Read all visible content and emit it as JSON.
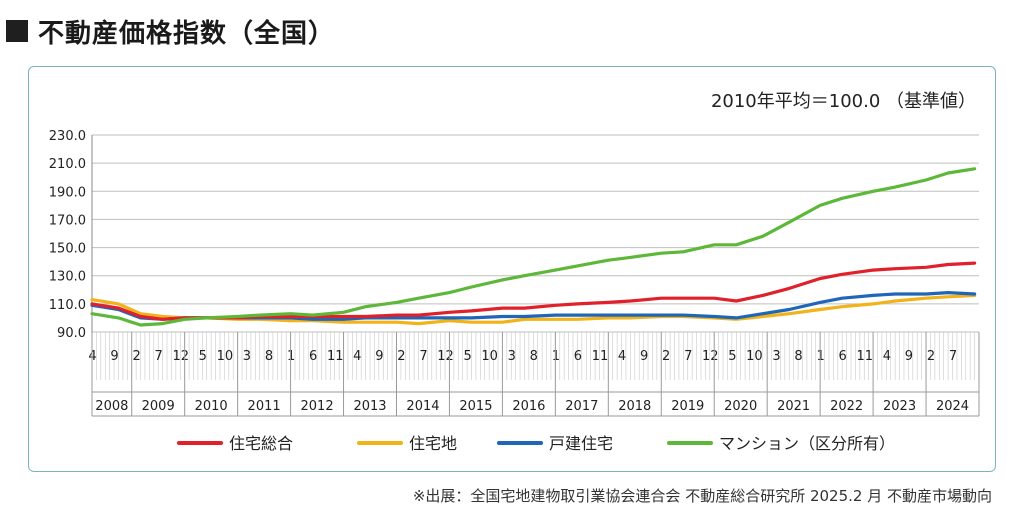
{
  "header": {
    "title": "不動産価格指数（全国）"
  },
  "source": "※出展：全国宅地建物取引業協会連合会 不動産総合研究所 2025.2 月 不動産市場動向",
  "chart_data": {
    "type": "line",
    "note": "2010年平均＝100.0 （基準値）",
    "ylim": [
      90,
      230
    ],
    "yticks": [
      "230.0",
      "210.0",
      "190.0",
      "170.0",
      "150.0",
      "130.0",
      "110.0",
      "90.0"
    ],
    "x_start": "2008-04",
    "x_end": "2024-12",
    "month_labels": [
      [
        "2008-04",
        "4"
      ],
      [
        "2008-09",
        "9"
      ],
      [
        "2009-02",
        "2"
      ],
      [
        "2009-07",
        "7"
      ],
      [
        "2009-12",
        "12"
      ],
      [
        "2010-05",
        "5"
      ],
      [
        "2010-10",
        "10"
      ],
      [
        "2011-03",
        "3"
      ],
      [
        "2011-08",
        "8"
      ],
      [
        "2012-01",
        "1"
      ],
      [
        "2012-06",
        "6"
      ],
      [
        "2012-11",
        "11"
      ],
      [
        "2013-04",
        "4"
      ],
      [
        "2013-09",
        "9"
      ],
      [
        "2014-02",
        "2"
      ],
      [
        "2014-07",
        "7"
      ],
      [
        "2014-12",
        "12"
      ],
      [
        "2015-05",
        "5"
      ],
      [
        "2015-10",
        "10"
      ],
      [
        "2016-03",
        "3"
      ],
      [
        "2016-08",
        "8"
      ],
      [
        "2017-01",
        "1"
      ],
      [
        "2017-06",
        "6"
      ],
      [
        "2017-11",
        "11"
      ],
      [
        "2018-04",
        "4"
      ],
      [
        "2018-09",
        "9"
      ],
      [
        "2019-02",
        "2"
      ],
      [
        "2019-07",
        "7"
      ],
      [
        "2019-12",
        "12"
      ],
      [
        "2020-05",
        "5"
      ],
      [
        "2020-10",
        "10"
      ],
      [
        "2021-03",
        "3"
      ],
      [
        "2021-08",
        "8"
      ],
      [
        "2022-01",
        "1"
      ],
      [
        "2022-06",
        "6"
      ],
      [
        "2022-11",
        "11"
      ],
      [
        "2023-04",
        "4"
      ],
      [
        "2023-09",
        "9"
      ],
      [
        "2024-02",
        "2"
      ],
      [
        "2024-07",
        "7"
      ]
    ],
    "years": [
      "2008",
      "2009",
      "2010",
      "2011",
      "2012",
      "2013",
      "2014",
      "2015",
      "2016",
      "2017",
      "2018",
      "2019",
      "2020",
      "2021",
      "2022",
      "2023",
      "2024"
    ],
    "series": [
      {
        "name": "住宅総合",
        "color": "#e0202a",
        "points": [
          [
            "2008-04",
            110
          ],
          [
            "2008-10",
            107
          ],
          [
            "2009-03",
            101
          ],
          [
            "2009-08",
            99
          ],
          [
            "2010-01",
            100
          ],
          [
            "2010-06",
            100
          ],
          [
            "2011-01",
            100
          ],
          [
            "2011-06",
            101
          ],
          [
            "2012-01",
            101
          ],
          [
            "2012-06",
            101
          ],
          [
            "2013-01",
            101
          ],
          [
            "2013-06",
            101
          ],
          [
            "2014-01",
            102
          ],
          [
            "2014-06",
            102
          ],
          [
            "2015-01",
            104
          ],
          [
            "2015-06",
            105
          ],
          [
            "2016-01",
            107
          ],
          [
            "2016-06",
            107
          ],
          [
            "2017-01",
            109
          ],
          [
            "2017-06",
            110
          ],
          [
            "2018-01",
            111
          ],
          [
            "2018-06",
            112
          ],
          [
            "2019-01",
            114
          ],
          [
            "2019-06",
            114
          ],
          [
            "2020-01",
            114
          ],
          [
            "2020-06",
            112
          ],
          [
            "2020-12",
            116
          ],
          [
            "2021-06",
            121
          ],
          [
            "2022-01",
            128
          ],
          [
            "2022-06",
            131
          ],
          [
            "2023-01",
            134
          ],
          [
            "2023-06",
            135
          ],
          [
            "2024-01",
            136
          ],
          [
            "2024-06",
            138
          ],
          [
            "2024-12",
            139
          ]
        ]
      },
      {
        "name": "住宅地",
        "color": "#f2b21a",
        "points": [
          [
            "2008-04",
            113
          ],
          [
            "2008-10",
            110
          ],
          [
            "2009-03",
            103
          ],
          [
            "2009-08",
            101
          ],
          [
            "2010-01",
            100
          ],
          [
            "2010-06",
            100
          ],
          [
            "2011-01",
            99
          ],
          [
            "2011-06",
            99
          ],
          [
            "2012-01",
            98
          ],
          [
            "2012-06",
            98
          ],
          [
            "2013-01",
            97
          ],
          [
            "2013-06",
            97
          ],
          [
            "2014-01",
            97
          ],
          [
            "2014-06",
            96
          ],
          [
            "2015-01",
            98
          ],
          [
            "2015-06",
            97
          ],
          [
            "2016-01",
            97
          ],
          [
            "2016-06",
            99
          ],
          [
            "2017-01",
            99
          ],
          [
            "2017-06",
            99
          ],
          [
            "2018-01",
            100
          ],
          [
            "2018-06",
            100
          ],
          [
            "2019-01",
            101
          ],
          [
            "2019-06",
            101
          ],
          [
            "2020-01",
            100
          ],
          [
            "2020-06",
            99
          ],
          [
            "2020-12",
            101
          ],
          [
            "2021-06",
            103
          ],
          [
            "2022-01",
            106
          ],
          [
            "2022-06",
            108
          ],
          [
            "2023-01",
            110
          ],
          [
            "2023-06",
            112
          ],
          [
            "2024-01",
            114
          ],
          [
            "2024-06",
            115
          ],
          [
            "2024-12",
            116
          ]
        ]
      },
      {
        "name": "戸建住宅",
        "color": "#1f66b8",
        "points": [
          [
            "2008-04",
            109
          ],
          [
            "2008-10",
            106
          ],
          [
            "2009-03",
            100
          ],
          [
            "2009-08",
            99
          ],
          [
            "2010-01",
            100
          ],
          [
            "2010-06",
            100
          ],
          [
            "2011-01",
            100
          ],
          [
            "2011-06",
            100
          ],
          [
            "2012-01",
            100
          ],
          [
            "2012-06",
            99
          ],
          [
            "2013-01",
            99
          ],
          [
            "2013-06",
            100
          ],
          [
            "2014-01",
            100
          ],
          [
            "2014-06",
            100
          ],
          [
            "2015-01",
            100
          ],
          [
            "2015-06",
            100
          ],
          [
            "2016-01",
            101
          ],
          [
            "2016-06",
            101
          ],
          [
            "2017-01",
            102
          ],
          [
            "2017-06",
            102
          ],
          [
            "2018-01",
            102
          ],
          [
            "2018-06",
            102
          ],
          [
            "2019-01",
            102
          ],
          [
            "2019-06",
            102
          ],
          [
            "2020-01",
            101
          ],
          [
            "2020-06",
            100
          ],
          [
            "2020-12",
            103
          ],
          [
            "2021-06",
            106
          ],
          [
            "2022-01",
            111
          ],
          [
            "2022-06",
            114
          ],
          [
            "2023-01",
            116
          ],
          [
            "2023-06",
            117
          ],
          [
            "2024-01",
            117
          ],
          [
            "2024-06",
            118
          ],
          [
            "2024-12",
            117
          ]
        ]
      },
      {
        "name": "マンション（区分所有）",
        "color": "#5db83a",
        "points": [
          [
            "2008-04",
            103
          ],
          [
            "2008-10",
            100
          ],
          [
            "2009-03",
            95
          ],
          [
            "2009-08",
            96
          ],
          [
            "2010-01",
            99
          ],
          [
            "2010-06",
            100
          ],
          [
            "2011-01",
            101
          ],
          [
            "2011-06",
            102
          ],
          [
            "2012-01",
            103
          ],
          [
            "2012-06",
            102
          ],
          [
            "2013-01",
            104
          ],
          [
            "2013-06",
            108
          ],
          [
            "2014-01",
            111
          ],
          [
            "2014-06",
            114
          ],
          [
            "2015-01",
            118
          ],
          [
            "2015-06",
            122
          ],
          [
            "2016-01",
            127
          ],
          [
            "2016-06",
            130
          ],
          [
            "2017-01",
            134
          ],
          [
            "2017-06",
            137
          ],
          [
            "2018-01",
            141
          ],
          [
            "2018-06",
            143
          ],
          [
            "2019-01",
            146
          ],
          [
            "2019-06",
            147
          ],
          [
            "2020-01",
            152
          ],
          [
            "2020-06",
            152
          ],
          [
            "2020-12",
            158
          ],
          [
            "2021-06",
            168
          ],
          [
            "2022-01",
            180
          ],
          [
            "2022-06",
            185
          ],
          [
            "2023-01",
            190
          ],
          [
            "2023-06",
            193
          ],
          [
            "2024-01",
            198
          ],
          [
            "2024-06",
            203
          ],
          [
            "2024-12",
            206
          ]
        ]
      }
    ]
  }
}
